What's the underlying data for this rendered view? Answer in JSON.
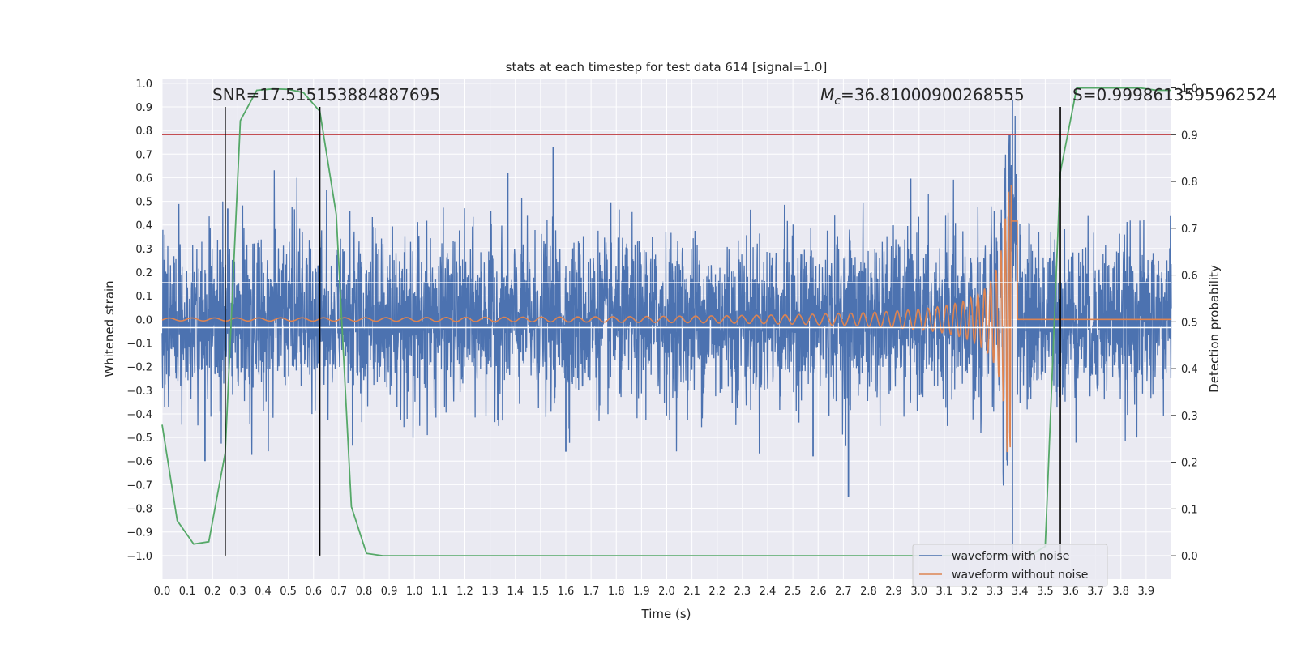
{
  "chart_data": {
    "type": "line",
    "title": "stats at each timestep for test data 614 [signal=1.0]",
    "xlabel": "Time (s)",
    "ylabel": "Whitened strain",
    "y2label": "Detection probability",
    "xlim": [
      0.0,
      4.0
    ],
    "ylim": [
      -1.1,
      1.02
    ],
    "y2lim": [
      -0.05,
      1.02
    ],
    "x_ticks": [
      "0.0",
      "0.1",
      "0.2",
      "0.3",
      "0.4",
      "0.5",
      "0.6",
      "0.7",
      "0.8",
      "0.9",
      "1.0",
      "1.1",
      "1.2",
      "1.3",
      "1.4",
      "1.5",
      "1.6",
      "1.7",
      "1.8",
      "1.9",
      "2.0",
      "2.1",
      "2.2",
      "2.3",
      "2.4",
      "2.5",
      "2.6",
      "2.7",
      "2.8",
      "2.9",
      "3.0",
      "3.1",
      "3.2",
      "3.3",
      "3.4",
      "3.5",
      "3.6",
      "3.7",
      "3.8",
      "3.9"
    ],
    "y_ticks": [
      "1.0",
      "0.9",
      "0.8",
      "0.7",
      "0.6",
      "0.5",
      "0.4",
      "0.3",
      "0.2",
      "0.1",
      "0.0",
      "−0.1",
      "−0.2",
      "−0.3",
      "−0.4",
      "−0.5",
      "−0.6",
      "−0.7",
      "−0.8",
      "−0.9",
      "−1.0"
    ],
    "y2_ticks": [
      "1.0",
      "0.9",
      "0.8",
      "0.7",
      "0.6",
      "0.5",
      "0.4",
      "0.3",
      "0.2",
      "0.1",
      "0.0"
    ],
    "grid": true,
    "legend_position": "lower-right",
    "annotations": {
      "snr": "SNR=17.515153884887695",
      "mc_prefix": "M",
      "mc_sub": "c",
      "mc_value": "=36.81000900268555",
      "s": "S=0.9998613595962524"
    },
    "series": [
      {
        "name": "waveform with noise",
        "color": "#4c72b0",
        "description_note_free": true,
        "noise_sigma": 0.17,
        "outliers": [
          [
            0.26,
            0.47
          ],
          [
            1.55,
            0.73
          ],
          [
            1.37,
            0.62
          ],
          [
            2.72,
            -0.75
          ],
          [
            3.36,
            0.78
          ],
          [
            3.37,
            0.93
          ],
          [
            3.37,
            -1.0
          ],
          [
            0.17,
            -0.6
          ],
          [
            1.6,
            -0.56
          ],
          [
            2.58,
            -0.58
          ]
        ]
      },
      {
        "name": "waveform without noise",
        "color": "#dd8452",
        "chirp_start_time": 0.0,
        "merger_time": 3.37,
        "amplitude_start": 0.006,
        "amplitude_peak": 0.57,
        "frequency_start_hz": 11,
        "frequency_peak_hz": 110
      },
      {
        "name": "detection probability",
        "color": "#55a868",
        "axis": "right",
        "x": [
          0.0,
          0.06,
          0.125,
          0.185,
          0.25,
          0.31,
          0.375,
          0.44,
          0.5,
          0.56,
          0.625,
          0.69,
          0.75,
          0.81,
          0.875,
          0.94,
          1.0,
          1.5,
          2.0,
          2.5,
          3.0,
          3.1,
          3.2,
          3.3,
          3.4,
          3.44,
          3.5,
          3.56,
          3.625,
          3.69,
          3.75,
          3.81,
          3.875,
          3.94,
          4.0
        ],
        "y": [
          0.28,
          0.075,
          0.025,
          0.03,
          0.22,
          0.93,
          0.995,
          0.998,
          0.997,
          0.99,
          0.95,
          0.73,
          0.105,
          0.005,
          0.0,
          0.0,
          0.0,
          0.0,
          0.0,
          0.0,
          0.0,
          0.0,
          0.0,
          0.0,
          0.0,
          0.0,
          0.02,
          0.82,
          1.0,
          1.0,
          1.0,
          1.0,
          1.0,
          0.995,
          0.995
        ]
      }
    ],
    "threshold_line": {
      "value": 0.9,
      "axis": "right",
      "color": "#c44e52"
    },
    "band_lines": {
      "values": [
        0.155,
        -0.035
      ],
      "color": "#ffffff"
    },
    "vertical_markers": {
      "x": [
        0.25,
        0.625,
        3.56
      ],
      "color": "#000000"
    }
  }
}
